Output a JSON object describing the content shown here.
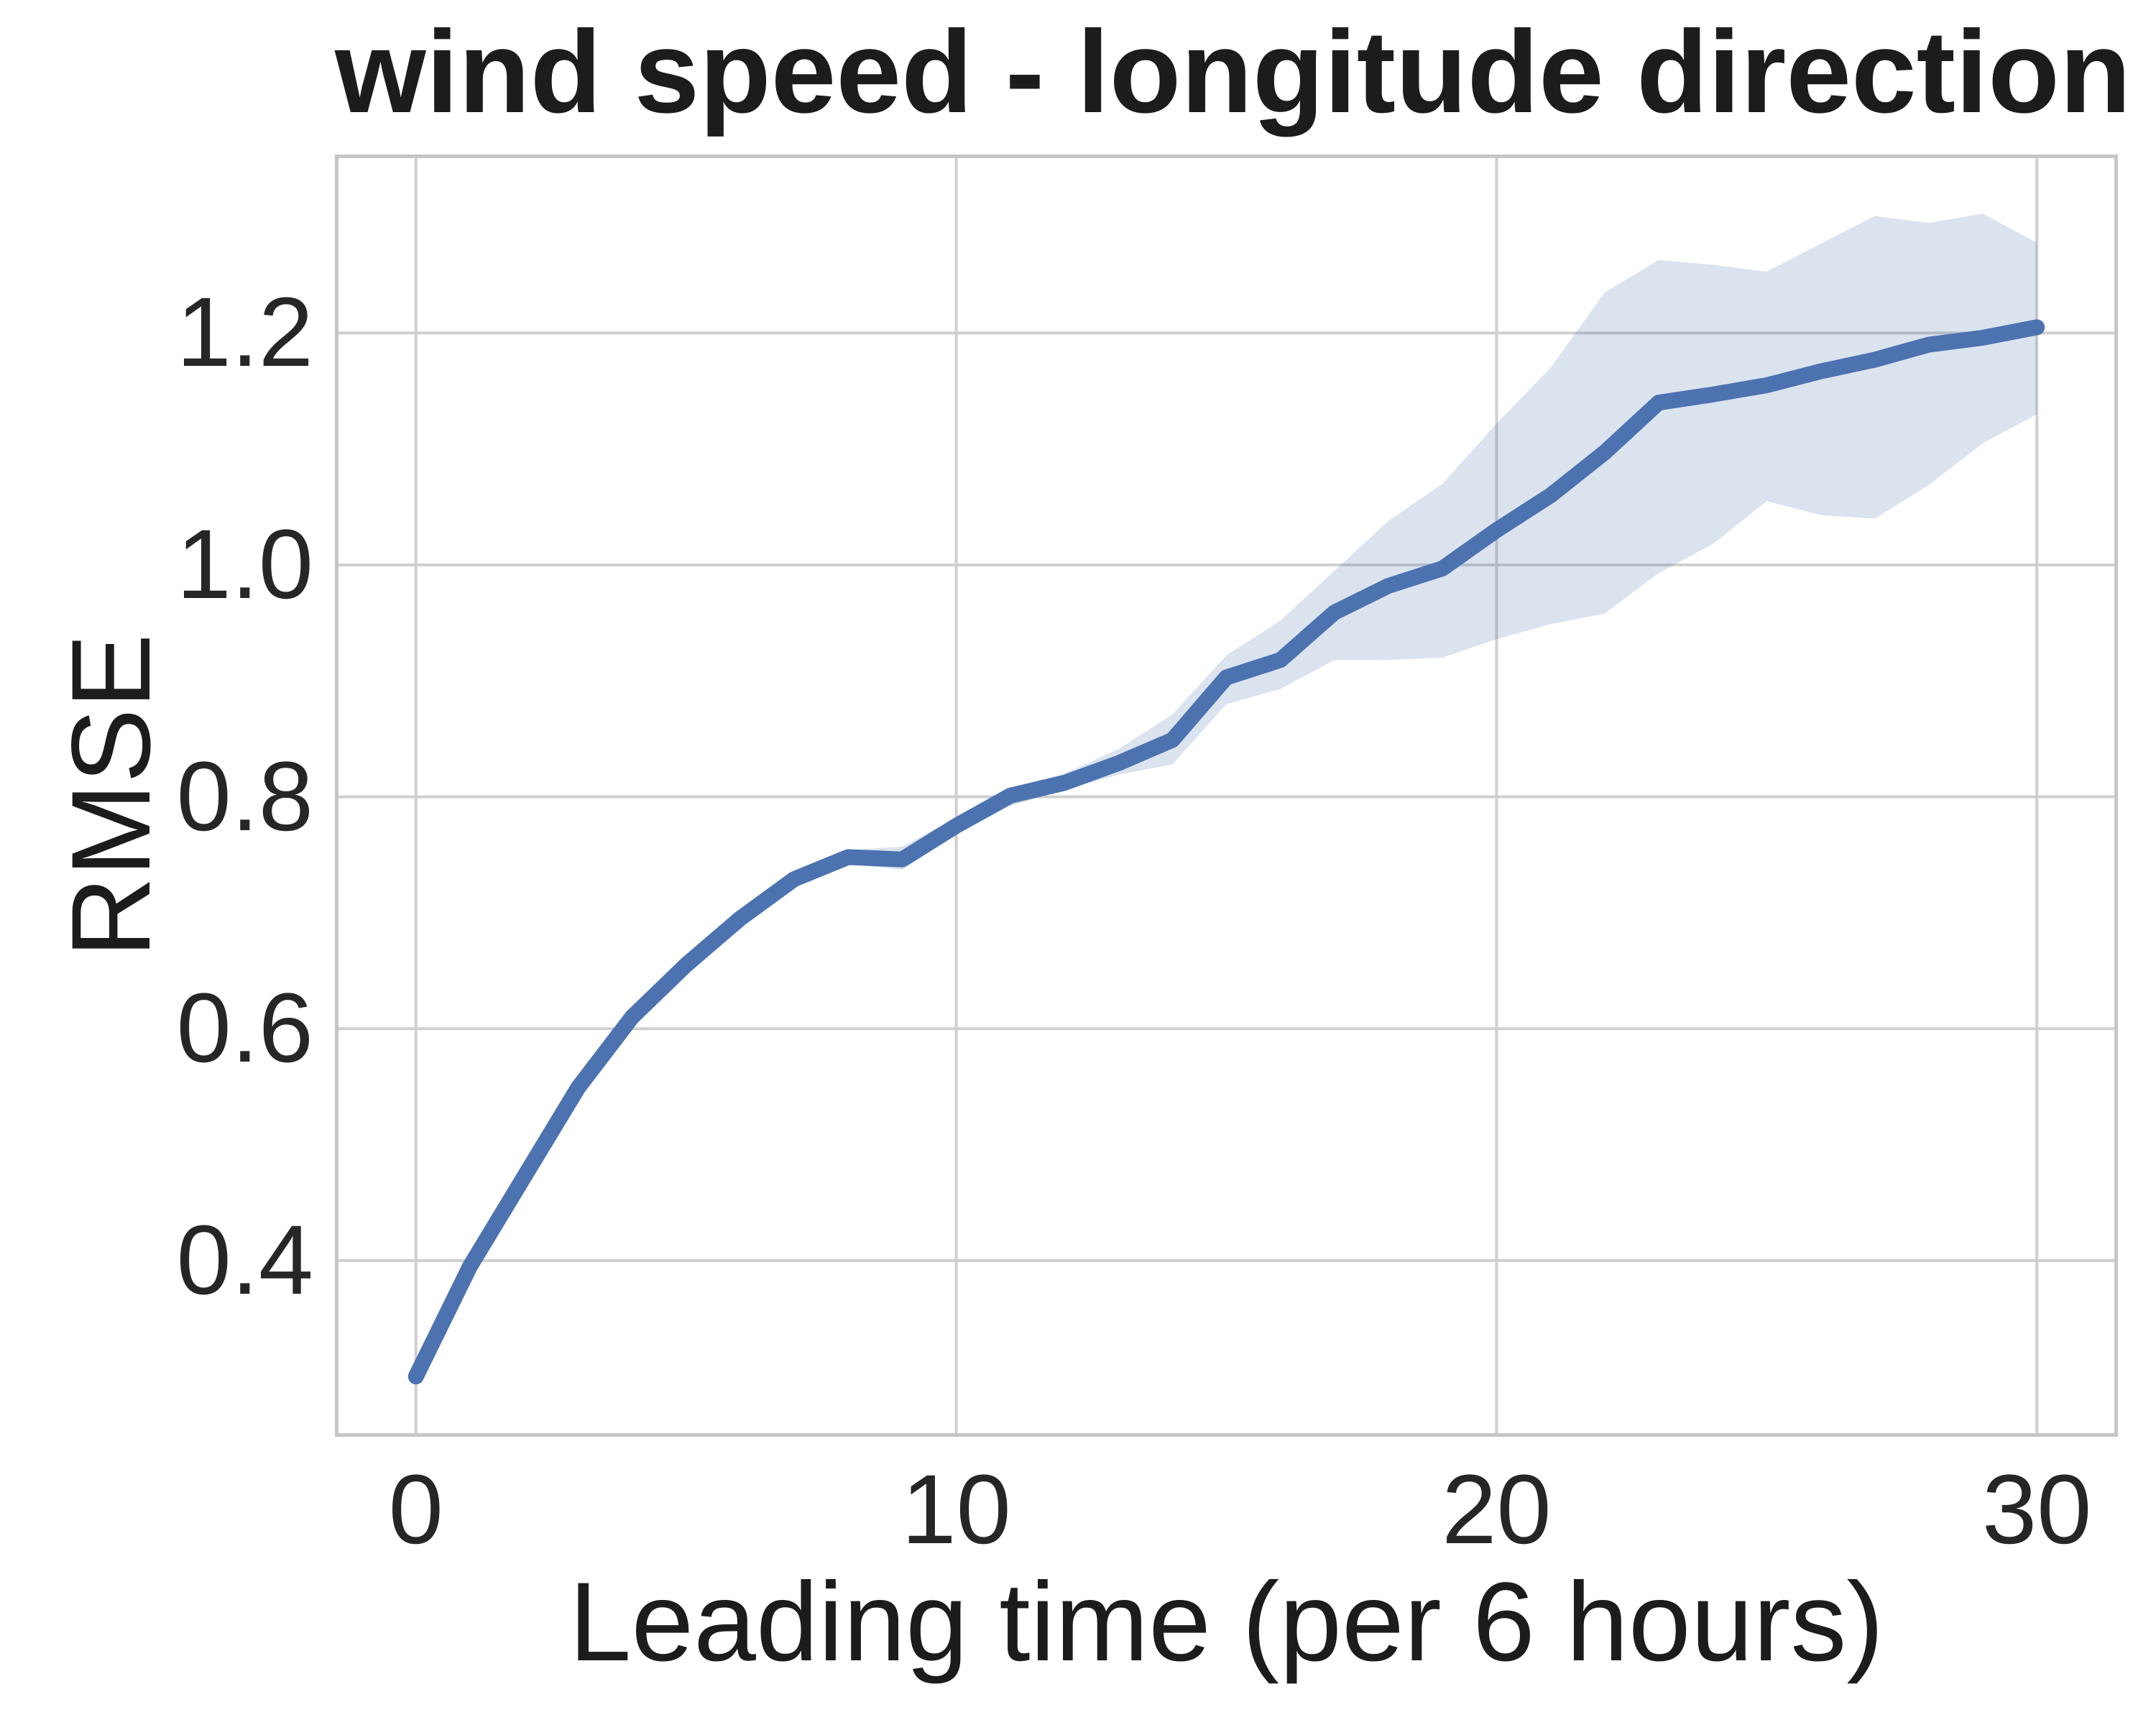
{
  "page": {
    "background": "#ffffff"
  },
  "chart_data": {
    "type": "line",
    "title": "wind speed - longitude direction",
    "xlabel": "Leading time (per 6 hours)",
    "ylabel": "RMSE",
    "x": [
      0,
      1,
      2,
      3,
      4,
      5,
      6,
      7,
      8,
      9,
      10,
      11,
      12,
      13,
      14,
      15,
      16,
      17,
      18,
      19,
      20,
      21,
      22,
      23,
      24,
      25,
      26,
      27,
      28,
      29,
      30
    ],
    "series": [
      {
        "name": "RMSE mean",
        "values": [
          0.3,
          0.395,
          0.472,
          0.549,
          0.61,
          0.655,
          0.695,
          0.729,
          0.748,
          0.746,
          0.775,
          0.801,
          0.812,
          0.829,
          0.849,
          0.903,
          0.918,
          0.959,
          0.982,
          0.997,
          1.03,
          1.06,
          1.097,
          1.14,
          1.147,
          1.155,
          1.167,
          1.177,
          1.19,
          1.196,
          1.205
        ]
      }
    ],
    "band": {
      "name": "confidence band",
      "low": [
        0.296,
        0.391,
        0.468,
        0.545,
        0.606,
        0.651,
        0.691,
        0.725,
        0.742,
        0.737,
        0.768,
        0.792,
        0.806,
        0.819,
        0.828,
        0.88,
        0.893,
        0.918,
        0.918,
        0.92,
        0.936,
        0.949,
        0.958,
        0.993,
        1.018,
        1.055,
        1.043,
        1.04,
        1.069,
        1.105,
        1.13
      ],
      "high": [
        0.304,
        0.399,
        0.476,
        0.553,
        0.614,
        0.659,
        0.699,
        0.733,
        0.754,
        0.757,
        0.782,
        0.808,
        0.82,
        0.841,
        0.871,
        0.922,
        0.952,
        0.995,
        1.038,
        1.07,
        1.122,
        1.17,
        1.235,
        1.263,
        1.259,
        1.253,
        1.277,
        1.301,
        1.295,
        1.303,
        1.278
      ]
    },
    "xticks": [
      0,
      10,
      20,
      30
    ],
    "xtick_labels": [
      "0",
      "10",
      "20",
      "30"
    ],
    "yticks": [
      0.4,
      0.6,
      0.8,
      1.0,
      1.2
    ],
    "ytick_labels": [
      "0.4",
      "0.6",
      "0.8",
      "1.0",
      "1.2"
    ],
    "xlim": [
      -1.5,
      31.5
    ],
    "ylim": [
      0.248,
      1.354
    ],
    "grid": true,
    "legend": "none",
    "colors": {
      "line": "#4C72B0",
      "band": "rgba(76,114,176,0.20)",
      "grid": "#cfcfcf",
      "spine": "#c6c6c6",
      "text": "#262626",
      "title": "#1c1c1c"
    }
  }
}
